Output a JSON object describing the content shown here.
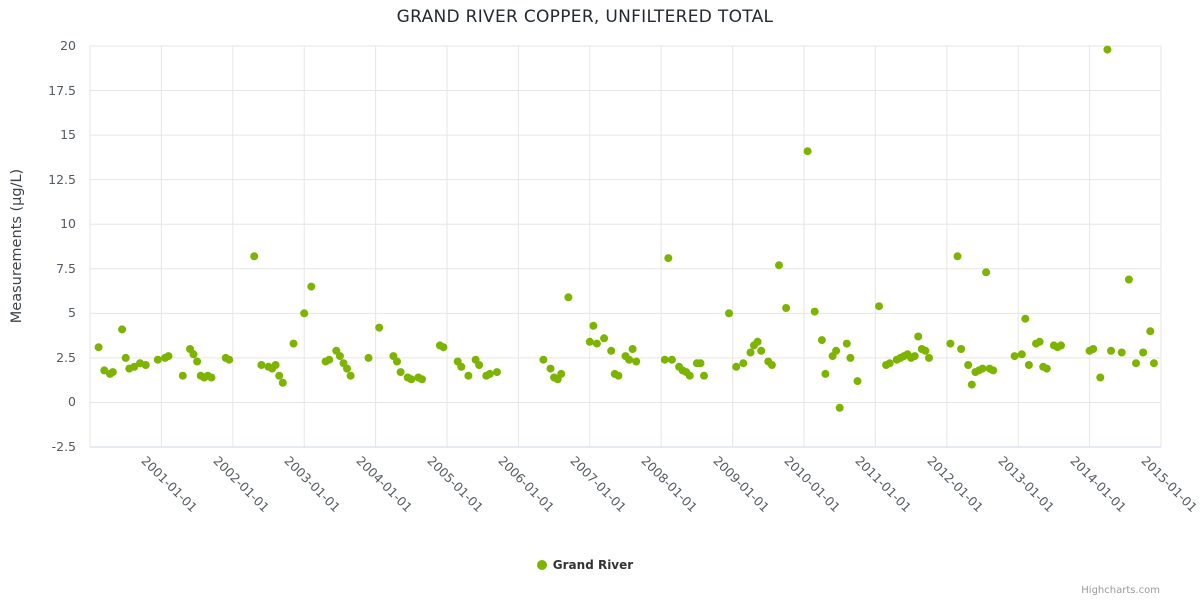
{
  "title": "GRAND RIVER COPPER, UNFILTERED TOTAL",
  "credits_label": "Highcharts.com",
  "legend": {
    "label": "Grand River",
    "marker_color": "#7cb400"
  },
  "chart_data": {
    "type": "scatter",
    "title": "GRAND RIVER COPPER, UNFILTERED TOTAL",
    "xlabel": "",
    "ylabel": "Measurements (µg/L)",
    "xlim": [
      2000,
      2015
    ],
    "ylim": [
      -2.5,
      20
    ],
    "grid": true,
    "legend_position": "bottom",
    "colors": {
      "grid": "#e6e6e6",
      "axis_line": "#ccd6eb",
      "point": "#7cb400"
    },
    "y_ticks": [
      -2.5,
      0,
      2.5,
      5,
      7.5,
      10,
      12.5,
      15,
      17.5,
      20
    ],
    "x_ticks": [
      {
        "x": 2000,
        "label": ""
      },
      {
        "x": 2001,
        "label": "2001-01-01"
      },
      {
        "x": 2002,
        "label": "2002-01-01"
      },
      {
        "x": 2003,
        "label": "2003-01-01"
      },
      {
        "x": 2004,
        "label": "2004-01-01"
      },
      {
        "x": 2005,
        "label": "2005-01-01"
      },
      {
        "x": 2006,
        "label": "2006-01-01"
      },
      {
        "x": 2007,
        "label": "2007-01-01"
      },
      {
        "x": 2008,
        "label": "2008-01-01"
      },
      {
        "x": 2009,
        "label": "2009-01-01"
      },
      {
        "x": 2010,
        "label": "2010-01-01"
      },
      {
        "x": 2011,
        "label": "2011-01-01"
      },
      {
        "x": 2012,
        "label": "2012-01-01"
      },
      {
        "x": 2013,
        "label": "2013-01-01"
      },
      {
        "x": 2014,
        "label": "2014-01-01"
      },
      {
        "x": 2015,
        "label": "2015-01-01"
      }
    ],
    "series": [
      {
        "name": "Grand River",
        "color": "#7cb400",
        "marker_radius": 4,
        "points": [
          [
            2000.12,
            3.1
          ],
          [
            2000.2,
            1.8
          ],
          [
            2000.28,
            1.6
          ],
          [
            2000.32,
            1.7
          ],
          [
            2000.45,
            4.1
          ],
          [
            2000.5,
            2.5
          ],
          [
            2000.55,
            1.9
          ],
          [
            2000.62,
            2.0
          ],
          [
            2000.7,
            2.2
          ],
          [
            2000.78,
            2.1
          ],
          [
            2000.95,
            2.4
          ],
          [
            2001.05,
            2.5
          ],
          [
            2001.1,
            2.6
          ],
          [
            2001.3,
            1.5
          ],
          [
            2001.4,
            3.0
          ],
          [
            2001.45,
            2.7
          ],
          [
            2001.5,
            2.3
          ],
          [
            2001.55,
            1.5
          ],
          [
            2001.6,
            1.4
          ],
          [
            2001.65,
            1.5
          ],
          [
            2001.7,
            1.4
          ],
          [
            2001.9,
            2.5
          ],
          [
            2001.95,
            2.4
          ],
          [
            2002.3,
            8.2
          ],
          [
            2002.4,
            2.1
          ],
          [
            2002.5,
            2.0
          ],
          [
            2002.55,
            1.9
          ],
          [
            2002.6,
            2.1
          ],
          [
            2002.65,
            1.5
          ],
          [
            2002.7,
            1.1
          ],
          [
            2002.85,
            3.3
          ],
          [
            2003.0,
            5.0
          ],
          [
            2003.1,
            6.5
          ],
          [
            2003.3,
            2.3
          ],
          [
            2003.35,
            2.4
          ],
          [
            2003.45,
            2.9
          ],
          [
            2003.5,
            2.6
          ],
          [
            2003.55,
            2.2
          ],
          [
            2003.6,
            1.9
          ],
          [
            2003.65,
            1.5
          ],
          [
            2003.9,
            2.5
          ],
          [
            2004.05,
            4.2
          ],
          [
            2004.25,
            2.6
          ],
          [
            2004.3,
            2.3
          ],
          [
            2004.35,
            1.7
          ],
          [
            2004.45,
            1.4
          ],
          [
            2004.5,
            1.3
          ],
          [
            2004.6,
            1.4
          ],
          [
            2004.65,
            1.3
          ],
          [
            2004.9,
            3.2
          ],
          [
            2004.95,
            3.1
          ],
          [
            2005.15,
            2.3
          ],
          [
            2005.2,
            2.0
          ],
          [
            2005.3,
            1.5
          ],
          [
            2005.4,
            2.4
          ],
          [
            2005.45,
            2.1
          ],
          [
            2005.55,
            1.5
          ],
          [
            2005.6,
            1.6
          ],
          [
            2005.7,
            1.7
          ],
          [
            2006.35,
            2.4
          ],
          [
            2006.45,
            1.9
          ],
          [
            2006.5,
            1.4
          ],
          [
            2006.55,
            1.3
          ],
          [
            2006.6,
            1.6
          ],
          [
            2006.7,
            5.9
          ],
          [
            2007.0,
            3.4
          ],
          [
            2007.05,
            4.3
          ],
          [
            2007.1,
            3.3
          ],
          [
            2007.2,
            3.6
          ],
          [
            2007.3,
            2.9
          ],
          [
            2007.35,
            1.6
          ],
          [
            2007.4,
            1.5
          ],
          [
            2007.5,
            2.6
          ],
          [
            2007.55,
            2.4
          ],
          [
            2007.6,
            3.0
          ],
          [
            2007.65,
            2.3
          ],
          [
            2008.05,
            2.4
          ],
          [
            2008.1,
            8.1
          ],
          [
            2008.15,
            2.4
          ],
          [
            2008.25,
            2.0
          ],
          [
            2008.3,
            1.8
          ],
          [
            2008.35,
            1.7
          ],
          [
            2008.4,
            1.5
          ],
          [
            2008.5,
            2.2
          ],
          [
            2008.55,
            2.2
          ],
          [
            2008.6,
            1.5
          ],
          [
            2008.95,
            5.0
          ],
          [
            2009.05,
            2.0
          ],
          [
            2009.15,
            2.2
          ],
          [
            2009.25,
            2.8
          ],
          [
            2009.3,
            3.2
          ],
          [
            2009.35,
            3.4
          ],
          [
            2009.4,
            2.9
          ],
          [
            2009.5,
            2.3
          ],
          [
            2009.55,
            2.1
          ],
          [
            2009.65,
            7.7
          ],
          [
            2009.75,
            5.3
          ],
          [
            2010.05,
            14.1
          ],
          [
            2010.15,
            5.1
          ],
          [
            2010.25,
            3.5
          ],
          [
            2010.3,
            1.6
          ],
          [
            2010.4,
            2.6
          ],
          [
            2010.45,
            2.9
          ],
          [
            2010.5,
            -0.3
          ],
          [
            2010.6,
            3.3
          ],
          [
            2010.65,
            2.5
          ],
          [
            2010.75,
            1.2
          ],
          [
            2011.05,
            5.4
          ],
          [
            2011.15,
            2.1
          ],
          [
            2011.2,
            2.2
          ],
          [
            2011.3,
            2.4
          ],
          [
            2011.35,
            2.5
          ],
          [
            2011.4,
            2.6
          ],
          [
            2011.45,
            2.7
          ],
          [
            2011.5,
            2.5
          ],
          [
            2011.55,
            2.6
          ],
          [
            2011.6,
            3.7
          ],
          [
            2011.65,
            3.0
          ],
          [
            2011.7,
            2.9
          ],
          [
            2011.75,
            2.5
          ],
          [
            2012.05,
            3.3
          ],
          [
            2012.15,
            8.2
          ],
          [
            2012.2,
            3.0
          ],
          [
            2012.3,
            2.1
          ],
          [
            2012.35,
            1.0
          ],
          [
            2012.4,
            1.7
          ],
          [
            2012.45,
            1.8
          ],
          [
            2012.5,
            1.9
          ],
          [
            2012.55,
            7.3
          ],
          [
            2012.6,
            1.9
          ],
          [
            2012.65,
            1.8
          ],
          [
            2012.95,
            2.6
          ],
          [
            2013.05,
            2.7
          ],
          [
            2013.1,
            4.7
          ],
          [
            2013.15,
            2.1
          ],
          [
            2013.25,
            3.3
          ],
          [
            2013.3,
            3.4
          ],
          [
            2013.35,
            2.0
          ],
          [
            2013.4,
            1.9
          ],
          [
            2013.5,
            3.2
          ],
          [
            2013.55,
            3.1
          ],
          [
            2013.6,
            3.2
          ],
          [
            2014.0,
            2.9
          ],
          [
            2014.05,
            3.0
          ],
          [
            2014.15,
            1.4
          ],
          [
            2014.25,
            19.8
          ],
          [
            2014.3,
            2.9
          ],
          [
            2014.45,
            2.8
          ],
          [
            2014.55,
            6.9
          ],
          [
            2014.65,
            2.2
          ],
          [
            2014.75,
            2.8
          ],
          [
            2014.85,
            4.0
          ],
          [
            2014.9,
            2.2
          ]
        ]
      }
    ]
  }
}
